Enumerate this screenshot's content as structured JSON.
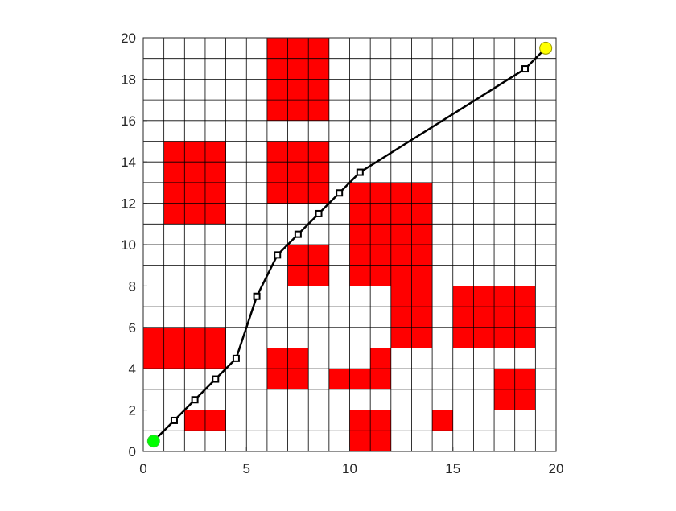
{
  "chart_data": {
    "type": "heatmap",
    "title": "",
    "xlabel": "",
    "ylabel": "",
    "xlim": [
      0,
      20
    ],
    "ylim": [
      0,
      20
    ],
    "grid": true,
    "grid_step": 1,
    "x_ticks": [
      0,
      5,
      10,
      15,
      20
    ],
    "y_ticks": [
      0,
      2,
      4,
      6,
      8,
      10,
      12,
      14,
      16,
      18,
      20
    ],
    "x_tick_labels": [
      "0",
      "5",
      "10",
      "15",
      "20"
    ],
    "y_tick_labels": [
      "0",
      "2",
      "4",
      "6",
      "8",
      "10",
      "12",
      "14",
      "16",
      "18",
      "20"
    ],
    "obstacle_cells": [
      [
        2,
        1
      ],
      [
        3,
        1
      ],
      [
        10,
        0
      ],
      [
        11,
        0
      ],
      [
        10,
        1
      ],
      [
        11,
        1
      ],
      [
        14,
        1
      ],
      [
        0,
        4
      ],
      [
        1,
        4
      ],
      [
        2,
        4
      ],
      [
        3,
        4
      ],
      [
        0,
        5
      ],
      [
        1,
        5
      ],
      [
        2,
        5
      ],
      [
        3,
        5
      ],
      [
        6,
        3
      ],
      [
        7,
        3
      ],
      [
        6,
        4
      ],
      [
        7,
        4
      ],
      [
        9,
        3
      ],
      [
        10,
        3
      ],
      [
        11,
        3
      ],
      [
        11,
        4
      ],
      [
        17,
        2
      ],
      [
        18,
        2
      ],
      [
        17,
        3
      ],
      [
        18,
        3
      ],
      [
        15,
        5
      ],
      [
        16,
        5
      ],
      [
        17,
        5
      ],
      [
        18,
        5
      ],
      [
        15,
        6
      ],
      [
        16,
        6
      ],
      [
        17,
        6
      ],
      [
        18,
        6
      ],
      [
        15,
        7
      ],
      [
        16,
        7
      ],
      [
        17,
        7
      ],
      [
        18,
        7
      ],
      [
        10,
        8
      ],
      [
        11,
        8
      ],
      [
        12,
        8
      ],
      [
        13,
        8
      ],
      [
        10,
        9
      ],
      [
        11,
        9
      ],
      [
        12,
        9
      ],
      [
        13,
        9
      ],
      [
        10,
        10
      ],
      [
        11,
        10
      ],
      [
        12,
        10
      ],
      [
        13,
        10
      ],
      [
        10,
        11
      ],
      [
        11,
        11
      ],
      [
        12,
        11
      ],
      [
        13,
        11
      ],
      [
        10,
        12
      ],
      [
        11,
        12
      ],
      [
        12,
        12
      ],
      [
        13,
        12
      ],
      [
        12,
        5
      ],
      [
        13,
        5
      ],
      [
        12,
        6
      ],
      [
        13,
        6
      ],
      [
        12,
        7
      ],
      [
        13,
        7
      ],
      [
        7,
        8
      ],
      [
        8,
        8
      ],
      [
        7,
        9
      ],
      [
        8,
        9
      ],
      [
        1,
        11
      ],
      [
        2,
        11
      ],
      [
        3,
        11
      ],
      [
        1,
        12
      ],
      [
        2,
        12
      ],
      [
        3,
        12
      ],
      [
        1,
        13
      ],
      [
        2,
        13
      ],
      [
        3,
        13
      ],
      [
        1,
        14
      ],
      [
        2,
        14
      ],
      [
        3,
        14
      ],
      [
        6,
        12
      ],
      [
        7,
        12
      ],
      [
        8,
        12
      ],
      [
        6,
        13
      ],
      [
        7,
        13
      ],
      [
        8,
        13
      ],
      [
        6,
        14
      ],
      [
        7,
        14
      ],
      [
        8,
        14
      ],
      [
        6,
        16
      ],
      [
        7,
        16
      ],
      [
        8,
        16
      ],
      [
        6,
        17
      ],
      [
        7,
        17
      ],
      [
        8,
        17
      ],
      [
        6,
        18
      ],
      [
        7,
        18
      ],
      [
        8,
        18
      ],
      [
        6,
        19
      ],
      [
        7,
        19
      ],
      [
        8,
        19
      ]
    ],
    "path": {
      "x": [
        0.5,
        1.5,
        2.5,
        3.5,
        4.5,
        5.5,
        6.5,
        7.5,
        8.5,
        9.5,
        10.5,
        18.5,
        19.5
      ],
      "y": [
        0.5,
        1.5,
        2.5,
        3.5,
        4.5,
        7.5,
        9.5,
        10.5,
        11.5,
        12.5,
        13.5,
        18.5,
        19.5
      ]
    },
    "start": {
      "x": 0.5,
      "y": 0.5
    },
    "goal": {
      "x": 19.5,
      "y": 19.5
    },
    "colors": {
      "obstacle": "#ff0000",
      "grid": "#000000",
      "path": "#000000",
      "start": "#00ff00",
      "goal": "#ffff00",
      "background": "#ffffff"
    }
  }
}
